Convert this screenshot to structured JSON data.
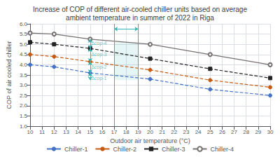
{
  "chart_data": {
    "type": "line",
    "title": "Increase of COP of different air-cooled chiller units based on average\nambient temperature in summer of 2022 in Riga",
    "xlabel": "Outdoor air temperature (°C)",
    "ylabel": "COP of air cooled chiller",
    "xlim": [
      10,
      30
    ],
    "ylim": [
      1,
      6
    ],
    "xticks": [
      10,
      11,
      12,
      13,
      14,
      15,
      16,
      17,
      18,
      19,
      20,
      21,
      22,
      23,
      24,
      25,
      26,
      27,
      28,
      29,
      30
    ],
    "yticks": [
      {
        "value": 1,
        "label": "1.0"
      },
      1.5,
      {
        "value": 2,
        "label": "2.0"
      },
      2.5,
      {
        "value": 3,
        "label": "3.0"
      },
      3.5,
      {
        "value": 4,
        "label": "4.0"
      },
      4.5,
      {
        "value": 5,
        "label": "5.0"
      },
      5.5,
      {
        "value": 6,
        "label": "6.0"
      }
    ],
    "grid": true,
    "legend": "bottom",
    "series": [
      {
        "name": "Chiller-1",
        "color": "#4472c4",
        "x": [
          10,
          12,
          15,
          20,
          25,
          30
        ],
        "values": [
          4.0,
          3.9,
          3.6,
          3.3,
          2.8,
          2.5
        ],
        "marker": "circle",
        "line_style": "dashed"
      },
      {
        "name": "Chiller-2",
        "color": "#c55a11",
        "x": [
          10,
          12,
          15,
          20,
          25,
          30
        ],
        "values": [
          4.5,
          4.4,
          4.15,
          3.75,
          3.25,
          2.9
        ],
        "marker": "circle",
        "line_style": "dashed"
      },
      {
        "name": "Chiller-3",
        "color": "#222222",
        "x": [
          10,
          12,
          15,
          20,
          25,
          30
        ],
        "values": [
          5.1,
          5.0,
          4.8,
          4.3,
          3.8,
          3.35
        ],
        "marker": "square",
        "line_style": "dashed"
      },
      {
        "name": "Chiller-4",
        "color": "#767171",
        "x": [
          10,
          12,
          15,
          20,
          25,
          30
        ],
        "values": [
          5.55,
          5.5,
          5.25,
          5.0,
          4.5,
          4.0
        ],
        "marker": "open_circle",
        "line_style": "solid"
      }
    ],
    "band": {
      "x": [
        17.0,
        19.0
      ],
      "y": [
        3.25,
        5.1
      ],
      "arrow_y": 5.75,
      "color": "#2fb5b5"
    },
    "annotations": [
      {
        "text": "Δcop-4",
        "x": 15.08,
        "y": 5.05,
        "arrow_x": 15.0,
        "y_from": 4.8,
        "y_to": 5.25
      },
      {
        "text": "Δcop-3",
        "x": 15.08,
        "y": 4.5,
        "arrow_x": 15.0,
        "y_from": 4.15,
        "y_to": 4.8
      },
      {
        "text": "Δcop-2",
        "x": 15.08,
        "y": 3.9,
        "arrow_x": 15.0,
        "y_from": 3.6,
        "y_to": 4.15
      },
      {
        "text": "Δcop-1",
        "x": 15.08,
        "y": 3.35,
        "arrow_x": 15.0,
        "y_from": 3.25,
        "y_to": 3.6
      }
    ]
  }
}
